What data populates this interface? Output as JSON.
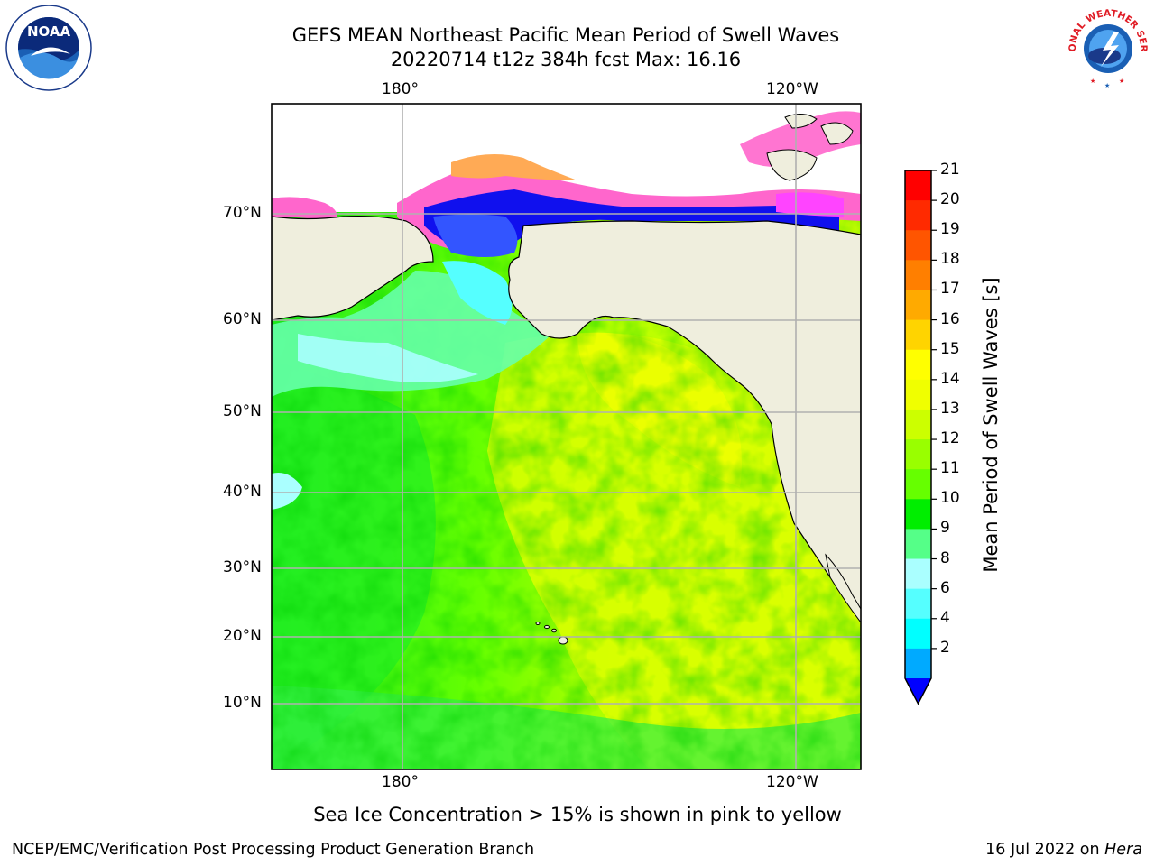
{
  "title": {
    "line1": "GEFS MEAN Northeast Pacific Mean Period of Swell Waves",
    "line2": "20220714 t12z 384h fcst   Max: 16.16"
  },
  "map": {
    "top_lon_labels": [
      "180°",
      "120°W"
    ],
    "bottom_lon_labels": [
      "180°",
      "120°W"
    ],
    "lat_labels": [
      "70°N",
      "60°N",
      "50°N",
      "40°N",
      "30°N",
      "20°N",
      "10°N"
    ],
    "sea_ice_colors": [
      "#ff66cc",
      "#ffaa55",
      "#ff44ff",
      "#3344ff",
      "#1010ee"
    ],
    "land_color": "#efeedd"
  },
  "colorbar": {
    "label": "Mean Period of Swell Waves [s]",
    "ticks": [
      "21",
      "20",
      "19",
      "18",
      "17",
      "16",
      "15",
      "14",
      "13",
      "12",
      "11",
      "10",
      "9",
      "8",
      "6",
      "4",
      "2"
    ],
    "colors_top_to_bottom": [
      "#ff0000",
      "#ff2a00",
      "#ff5500",
      "#ff7f00",
      "#ffaa00",
      "#ffd400",
      "#ffff00",
      "#f0ff00",
      "#ccff00",
      "#99ff00",
      "#66ff00",
      "#00ee00",
      "#55ff88",
      "#aaffff",
      "#55ffff",
      "#00ffff",
      "#00aaff"
    ],
    "extend_color": "#0000ff"
  },
  "caption": "Sea Ice Concentration > 15% is shown in pink to yellow",
  "footer": {
    "credit": "NCEP/EMC/Verification Post Processing Product Generation Branch",
    "date_prefix": "16 Jul 2022 on ",
    "host": "Hera"
  },
  "logos": {
    "noaa_text": "NOAA",
    "nws_text": "NATIONAL WEATHER SERVICE"
  }
}
